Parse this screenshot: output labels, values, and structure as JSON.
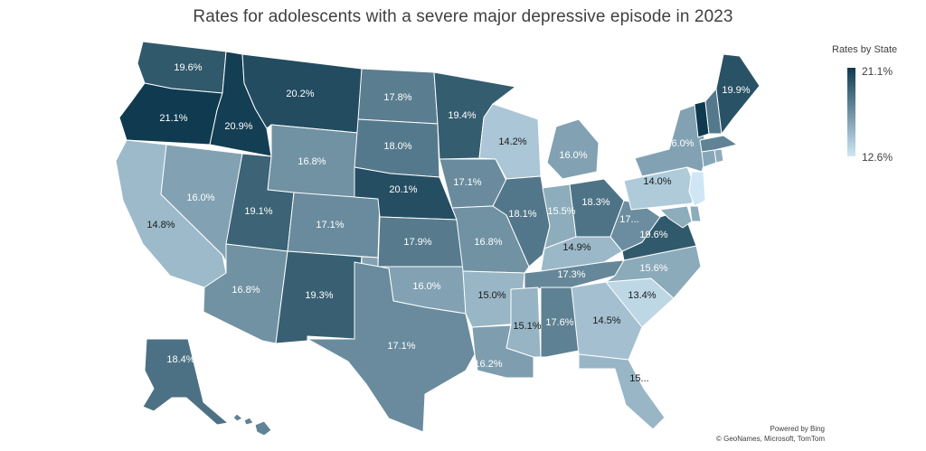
{
  "title": "Rates for adolescents with a severe major depressive episode in 2023",
  "legend": {
    "title": "Rates by State",
    "max_label": "21.1%",
    "min_label": "12.6%",
    "max_value": 21.1,
    "min_value": 12.6,
    "color_high": "#0f3a4f",
    "color_low": "#cfe7f5"
  },
  "credits": {
    "line1": "Powered by Bing",
    "line2": "© GeoNames, Microsoft, TomTom"
  },
  "states": [
    {
      "id": "WA",
      "value": 19.6,
      "label": "19.6%"
    },
    {
      "id": "OR",
      "value": 21.1,
      "label": "21.1%"
    },
    {
      "id": "CA",
      "value": 14.8,
      "label": "14.8%"
    },
    {
      "id": "ID",
      "value": 20.9,
      "label": "20.9%"
    },
    {
      "id": "NV",
      "value": 16.0,
      "label": "16.0%"
    },
    {
      "id": "MT",
      "value": 20.2,
      "label": "20.2%"
    },
    {
      "id": "WY",
      "value": 16.8,
      "label": "16.8%"
    },
    {
      "id": "UT",
      "value": 19.1,
      "label": "19.1%"
    },
    {
      "id": "AZ",
      "value": 16.8,
      "label": "16.8%"
    },
    {
      "id": "CO",
      "value": 17.1,
      "label": "17.1%"
    },
    {
      "id": "NM",
      "value": 19.3,
      "label": "19.3%"
    },
    {
      "id": "ND",
      "value": 17.8,
      "label": "17.8%"
    },
    {
      "id": "SD",
      "value": 18.0,
      "label": "18.0%"
    },
    {
      "id": "NE",
      "value": 20.1,
      "label": "20.1%"
    },
    {
      "id": "KS",
      "value": 17.9,
      "label": "17.9%"
    },
    {
      "id": "OK",
      "value": 16.0,
      "label": "16.0%"
    },
    {
      "id": "TX",
      "value": 17.1,
      "label": "17.1%"
    },
    {
      "id": "MN",
      "value": 19.4,
      "label": "19.4%"
    },
    {
      "id": "IA",
      "value": 17.1,
      "label": "17.1%"
    },
    {
      "id": "MO",
      "value": 16.8,
      "label": "16.8%"
    },
    {
      "id": "AR",
      "value": 15.0,
      "label": "15.0%"
    },
    {
      "id": "LA",
      "value": 16.2,
      "label": "16.2%"
    },
    {
      "id": "WI",
      "value": 14.2,
      "label": "14.2%"
    },
    {
      "id": "IL",
      "value": 18.1,
      "label": "18.1%"
    },
    {
      "id": "MI",
      "value": 16.0,
      "label": "16.0%"
    },
    {
      "id": "IN",
      "value": 15.5,
      "label": "15.5%"
    },
    {
      "id": "OH",
      "value": 18.3,
      "label": "18.3%"
    },
    {
      "id": "KY",
      "value": 14.9,
      "label": "14.9%"
    },
    {
      "id": "TN",
      "value": 17.3,
      "label": "17.3%"
    },
    {
      "id": "MS",
      "value": 15.1,
      "label": "15.1%"
    },
    {
      "id": "AL",
      "value": 17.6,
      "label": "17.6%"
    },
    {
      "id": "GA",
      "value": 14.5,
      "label": "14.5%"
    },
    {
      "id": "FL",
      "value": 15.0,
      "label": "15..."
    },
    {
      "id": "SC",
      "value": 13.4,
      "label": "13.4%"
    },
    {
      "id": "NC",
      "value": 15.6,
      "label": "15.6%"
    },
    {
      "id": "VA",
      "value": 19.6,
      "label": "19.6%"
    },
    {
      "id": "WV",
      "value": 17.0,
      "label": "17..."
    },
    {
      "id": "PA",
      "value": 14.0,
      "label": "14.0%"
    },
    {
      "id": "NY",
      "value": 16.0,
      "label": "16.0%"
    },
    {
      "id": "VT",
      "value": 21.1,
      "label": ""
    },
    {
      "id": "NH",
      "value": 18.0,
      "label": ""
    },
    {
      "id": "ME",
      "value": 19.9,
      "label": "19.9%"
    },
    {
      "id": "MA",
      "value": 17.5,
      "label": ""
    },
    {
      "id": "CT",
      "value": 15.8,
      "label": ""
    },
    {
      "id": "RI",
      "value": 15.5,
      "label": ""
    },
    {
      "id": "NJ",
      "value": 12.6,
      "label": ""
    },
    {
      "id": "DE",
      "value": 15.5,
      "label": ""
    },
    {
      "id": "MD",
      "value": 15.5,
      "label": ""
    },
    {
      "id": "AK",
      "value": 18.4,
      "label": "18.4%"
    },
    {
      "id": "HI",
      "value": 17.5,
      "label": ""
    }
  ]
}
